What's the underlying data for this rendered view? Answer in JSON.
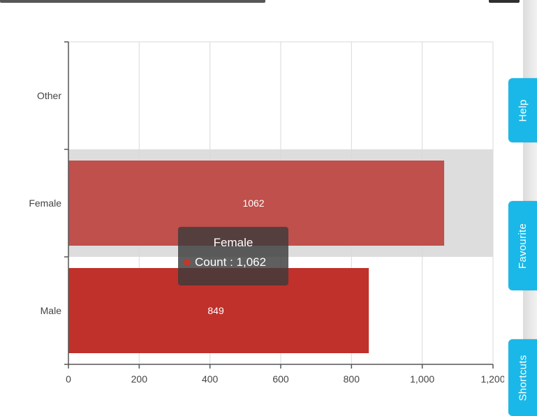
{
  "chart_data": {
    "type": "bar",
    "orientation": "horizontal",
    "categories": [
      "Other",
      "Female",
      "Male"
    ],
    "values": [
      0,
      1062,
      849
    ],
    "data_labels": [
      "",
      "1062",
      "849"
    ],
    "series": [
      {
        "name": "Count",
        "values": [
          0,
          1062,
          849
        ]
      }
    ],
    "bar_colors": [
      "#c0392b",
      "#bf504c",
      "#c0312b"
    ],
    "hover_band_color": "#dddddd",
    "xlim": [
      0,
      1200
    ],
    "x_ticks": [
      0,
      200,
      400,
      600,
      800,
      1000,
      1200
    ],
    "x_tick_labels": [
      "0",
      "200",
      "400",
      "600",
      "800",
      "1,000",
      "1,200"
    ],
    "grid": true,
    "highlighted_category": "Female",
    "title": "",
    "xlabel": "",
    "ylabel": ""
  },
  "tooltip": {
    "title": "Female",
    "label": "Count",
    "value": "1,062",
    "text": "Count : 1,062",
    "dot_color": "#c0392b"
  },
  "side_tabs": {
    "help": "Help",
    "favourite": "Favourite",
    "shortcuts": "Shortcuts"
  }
}
